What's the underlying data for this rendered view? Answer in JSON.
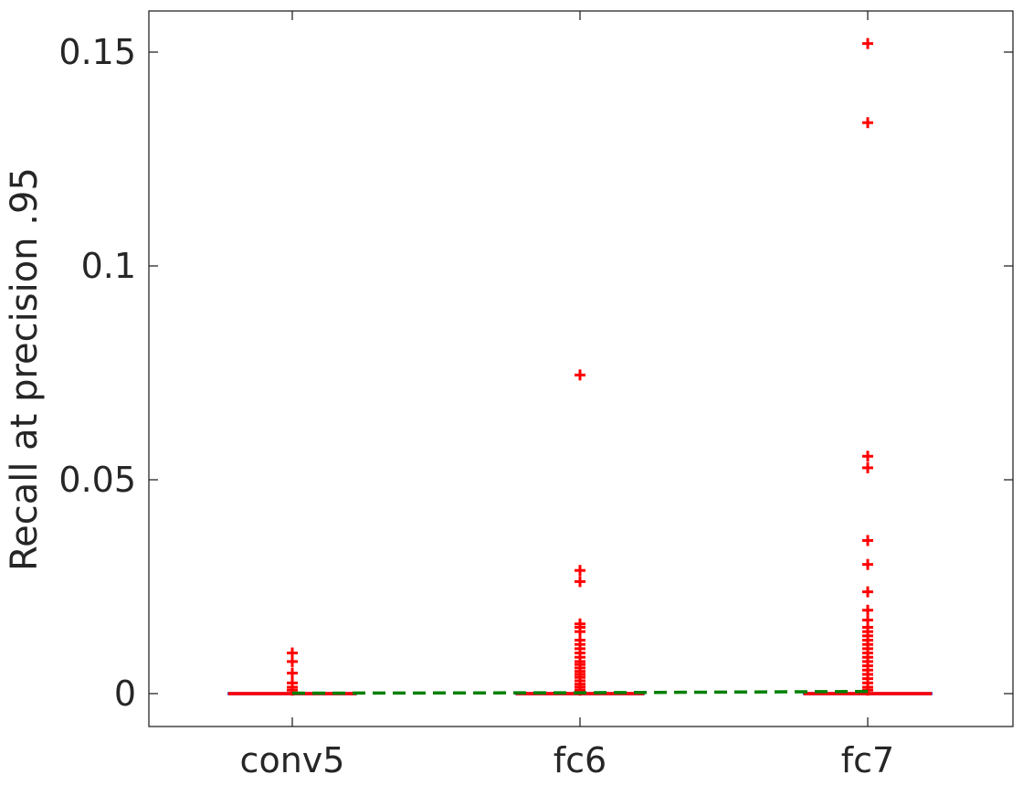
{
  "chart_data": {
    "type": "box",
    "title": "",
    "xlabel": "",
    "ylabel": "Recall at precision .95",
    "ylim": [
      -0.008,
      0.16
    ],
    "categories": [
      "conv5",
      "fc6",
      "fc7"
    ],
    "yticks": [
      0,
      0.05,
      0.1,
      0.15
    ],
    "ytick_labels": [
      "0",
      "0.05",
      "0.1",
      "0.15"
    ],
    "grid": false,
    "legend": "none",
    "boxes": [
      {
        "category": "conv5",
        "median": 0,
        "q1": 0,
        "q3": 0,
        "whisker_low": 0,
        "whisker_high": 0,
        "outliers": [
          0.0095,
          0.0075,
          0.0048,
          0.0025,
          0.0015,
          0.0008
        ]
      },
      {
        "category": "fc6",
        "median": 0,
        "q1": 0,
        "q3": 0,
        "whisker_low": 0,
        "whisker_high": 0,
        "outliers": [
          0.0745,
          0.0288,
          0.0262,
          0.0163,
          0.0155,
          0.0145,
          0.0125,
          0.0115,
          0.0105,
          0.0095,
          0.0085,
          0.0075,
          0.0068,
          0.006,
          0.0052,
          0.0045,
          0.0038,
          0.003,
          0.0022,
          0.0015,
          0.0008
        ]
      },
      {
        "category": "fc7",
        "median": 0,
        "q1": 0,
        "q3": 0,
        "whisker_low": 0,
        "whisker_high": 0,
        "outliers": [
          0.152,
          0.1335,
          0.0555,
          0.0528,
          0.0358,
          0.0302,
          0.0238,
          0.0195,
          0.0172,
          0.0155,
          0.0145,
          0.0135,
          0.0125,
          0.0115,
          0.0105,
          0.0095,
          0.0085,
          0.0075,
          0.0065,
          0.0055,
          0.0045,
          0.0035,
          0.0025,
          0.0015,
          0.0008
        ]
      }
    ],
    "mean_line": {
      "style": "dashed",
      "values": [
        0.0001,
        0.0002,
        0.0005
      ]
    },
    "colors": {
      "box": "#ff0000",
      "outlier": "#ff0000",
      "mean_line": "#008000",
      "axis": "#262626"
    }
  }
}
